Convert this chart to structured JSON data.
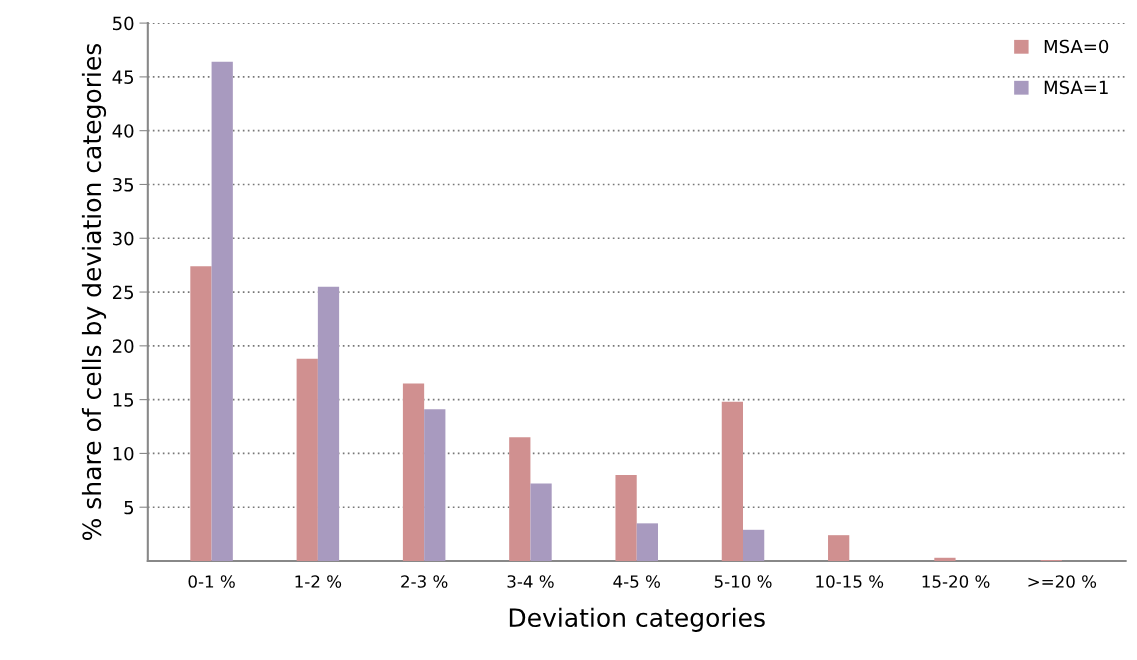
{
  "chart_data": {
    "type": "bar",
    "xlabel": "Deviation categories",
    "ylabel": "% share of cells by deviation categories",
    "categories": [
      "0-1 %",
      "1-2 %",
      "2-3 %",
      "3-4 %",
      "4-5 %",
      "5-10 %",
      "10-15 %",
      "15-20 %",
      ">=20 %"
    ],
    "series": [
      {
        "name": "MSA=0",
        "color": "#d09090",
        "values": [
          27.4,
          18.8,
          16.5,
          11.5,
          8.0,
          14.8,
          2.4,
          0.3,
          0.1
        ]
      },
      {
        "name": "MSA=1",
        "color": "#a89abf",
        "values": [
          46.4,
          25.5,
          14.1,
          7.2,
          3.5,
          2.9,
          null,
          0,
          0
        ]
      }
    ],
    "ylim": [
      0,
      50
    ],
    "yticks": [
      5,
      10,
      15,
      20,
      25,
      30,
      35,
      40,
      45,
      50
    ],
    "grid": "y",
    "legend": "top right"
  }
}
